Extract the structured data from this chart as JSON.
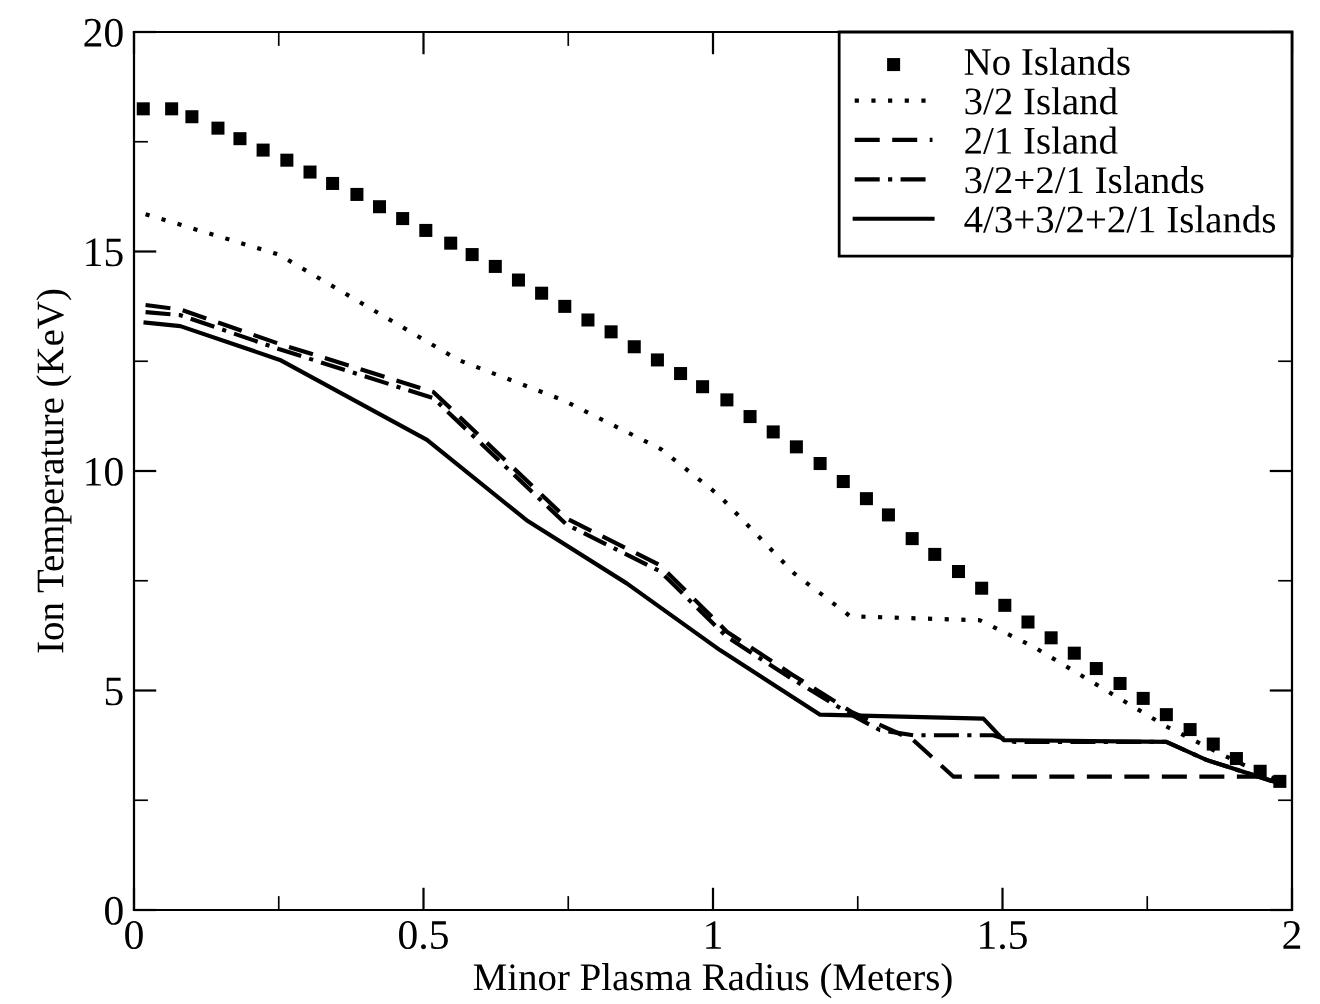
{
  "chart_data": {
    "type": "line",
    "xlabel": "Minor Plasma Radius (Meters)",
    "ylabel": "Ion Temperature (KeV)",
    "xlim": [
      0,
      2
    ],
    "ylim": [
      0,
      20
    ],
    "xticks": [
      0,
      0.5,
      1,
      1.5,
      2
    ],
    "yticks": [
      0,
      5,
      10,
      15,
      20
    ],
    "grid": false,
    "legend": "top right",
    "series": [
      {
        "name": "No Islands",
        "color": "#000000",
        "type": "scatter",
        "marker": "square",
        "x": [
          0.016,
          0.065,
          0.1,
          0.145,
          0.183,
          0.223,
          0.264,
          0.304,
          0.343,
          0.385,
          0.424,
          0.464,
          0.504,
          0.547,
          0.584,
          0.624,
          0.664,
          0.704,
          0.744,
          0.784,
          0.824,
          0.864,
          0.904,
          0.944,
          0.982,
          1.024,
          1.064,
          1.104,
          1.144,
          1.185,
          1.225,
          1.265,
          1.303,
          1.344,
          1.383,
          1.424,
          1.464,
          1.504,
          1.544,
          1.584,
          1.624,
          1.662,
          1.703,
          1.743,
          1.783,
          1.824,
          1.864,
          1.904,
          1.945,
          1.979
        ],
        "values": [
          18.25,
          18.25,
          18.07,
          17.81,
          17.57,
          17.31,
          17.08,
          16.81,
          16.55,
          16.3,
          16.02,
          15.75,
          15.48,
          15.19,
          14.93,
          14.66,
          14.35,
          14.05,
          13.75,
          13.44,
          13.17,
          12.83,
          12.53,
          12.22,
          11.92,
          11.62,
          11.24,
          10.89,
          10.55,
          10.17,
          9.76,
          9.37,
          9.0,
          8.46,
          8.1,
          7.71,
          7.33,
          6.94,
          6.56,
          6.2,
          5.85,
          5.5,
          5.16,
          4.82,
          4.45,
          4.11,
          3.78,
          3.45,
          3.16,
          2.93
        ]
      },
      {
        "name": "3/2 Island",
        "color": "#000000",
        "line_style": "dotted",
        "x": [
          0.02,
          0.25,
          0.56,
          0.74,
          0.91,
          1.01,
          1.14,
          1.237,
          1.461,
          1.553,
          1.668,
          1.783,
          1.898,
          1.979
        ],
        "values": [
          15.85,
          14.93,
          12.53,
          11.62,
          10.5,
          9.45,
          7.67,
          6.69,
          6.6,
          6.0,
          5.09,
          4.18,
          3.42,
          2.93
        ]
      },
      {
        "name": "2/1 Island",
        "color": "#000000",
        "line_style": "dashed",
        "x": [
          0.02,
          0.08,
          0.25,
          0.517,
          0.747,
          0.908,
          1.024,
          1.137,
          1.241,
          1.346,
          1.415,
          1.95,
          1.97
        ],
        "values": [
          13.78,
          13.68,
          12.9,
          11.8,
          8.92,
          7.86,
          6.34,
          5.36,
          4.5,
          3.87,
          3.04,
          3.04,
          3.0
        ]
      },
      {
        "name": "3/2+2/1 Islands",
        "color": "#000000",
        "line_style": "dashdot",
        "x": [
          0.02,
          0.08,
          0.25,
          0.517,
          0.747,
          0.908,
          1.024,
          1.137,
          1.241,
          1.288,
          1.346,
          1.484,
          1.52,
          1.783,
          1.852,
          1.979
        ],
        "values": [
          13.62,
          13.55,
          12.78,
          11.66,
          8.78,
          7.72,
          6.22,
          5.26,
          4.43,
          4.1,
          3.98,
          3.98,
          3.83,
          3.83,
          3.42,
          2.88
        ]
      },
      {
        "name": "4/3+3/2+2/1 Islands",
        "color": "#000000",
        "line_style": "solid",
        "x": [
          0.02,
          0.08,
          0.252,
          0.506,
          0.678,
          0.851,
          1.012,
          1.185,
          1.467,
          1.502,
          1.783,
          1.852,
          1.979
        ],
        "values": [
          13.38,
          13.3,
          12.53,
          10.71,
          8.88,
          7.44,
          5.92,
          4.45,
          4.36,
          3.87,
          3.83,
          3.42,
          2.88
        ]
      }
    ]
  }
}
